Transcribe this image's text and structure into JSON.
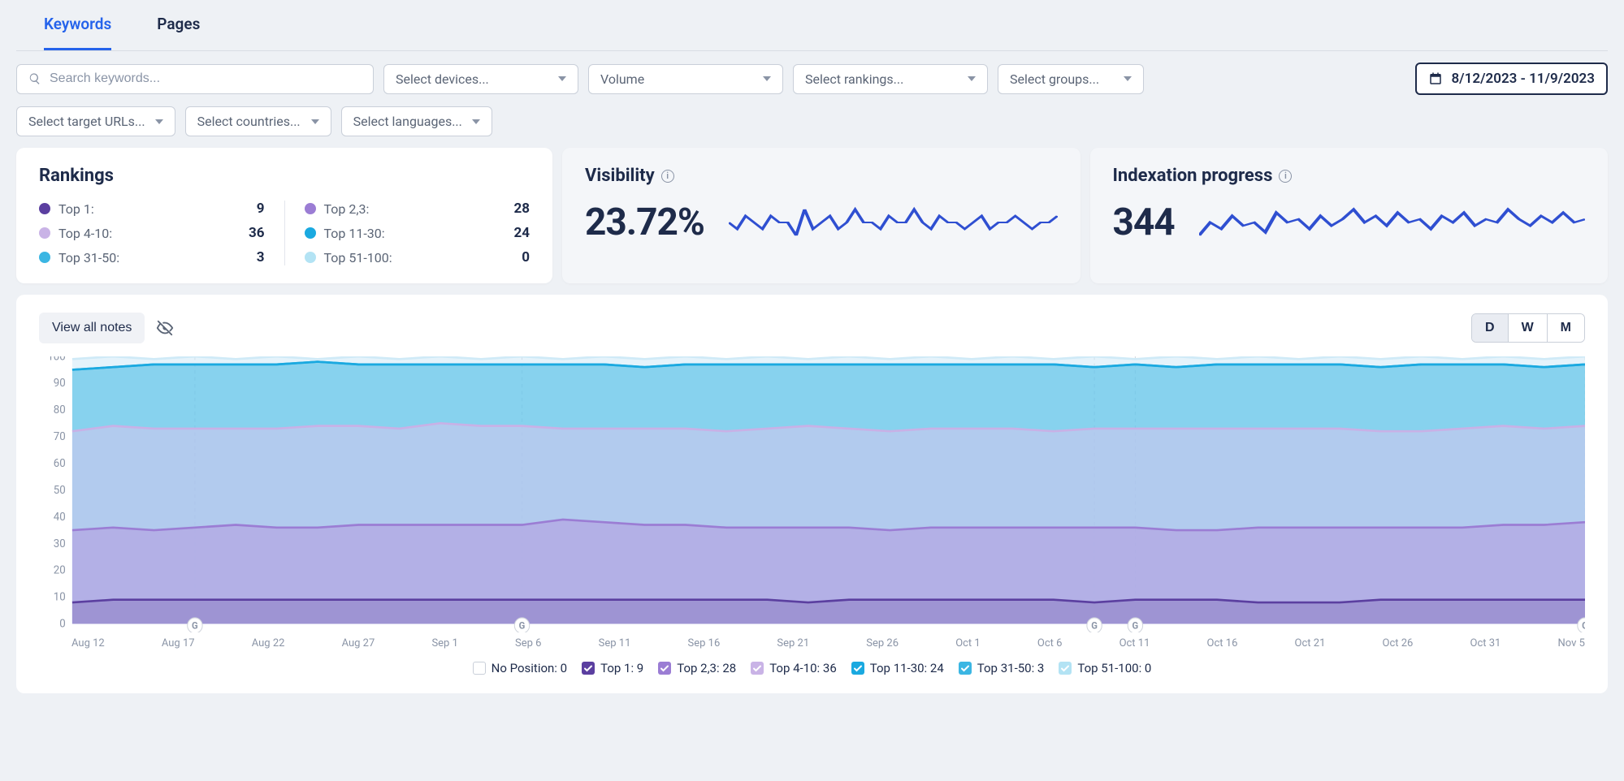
{
  "tabs": {
    "keywords": "Keywords",
    "pages": "Pages",
    "active": "keywords"
  },
  "filters": {
    "search_placeholder": "Search keywords...",
    "devices": "Select devices...",
    "volume": "Volume",
    "rankings": "Select rankings...",
    "groups": "Select groups...",
    "target_urls": "Select target URLs...",
    "countries": "Select countries...",
    "languages": "Select languages...",
    "date_range": "8/12/2023 - 11/9/2023"
  },
  "rankings": {
    "title": "Rankings",
    "left": [
      {
        "label": "Top 1:",
        "value": "9",
        "color": "#5b3fa0"
      },
      {
        "label": "Top 4-10:",
        "value": "36",
        "color": "#c9b3e6"
      },
      {
        "label": "Top 31-50:",
        "value": "3",
        "color": "#3bb6e3"
      }
    ],
    "right": [
      {
        "label": "Top 2,3:",
        "value": "28",
        "color": "#9b7dd4"
      },
      {
        "label": "Top 11-30:",
        "value": "24",
        "color": "#1aa9e0"
      },
      {
        "label": "Top 51-100:",
        "value": "0",
        "color": "#b3e3f4"
      }
    ]
  },
  "visibility": {
    "title": "Visibility",
    "value": "23.72%",
    "spark_color": "#2f4fd1",
    "spark": [
      24,
      23,
      25,
      24,
      23,
      25,
      24,
      24,
      22,
      26,
      23,
      24,
      25,
      23,
      24,
      26,
      24,
      24,
      23,
      25,
      24,
      24,
      26,
      24,
      23,
      25,
      24,
      24,
      23,
      24,
      25,
      23,
      24,
      24,
      25,
      24,
      23,
      24,
      24,
      25
    ]
  },
  "indexation": {
    "title": "Indexation progress",
    "value": "344",
    "spark_color": "#2f4fd1",
    "spark": [
      340,
      344,
      342,
      346,
      343,
      344,
      341,
      347,
      344,
      345,
      342,
      346,
      343,
      345,
      348,
      344,
      346,
      343,
      347,
      344,
      345,
      342,
      346,
      344,
      347,
      343,
      345,
      344,
      348,
      345,
      343,
      346,
      344,
      347,
      344,
      345
    ]
  },
  "chart": {
    "view_notes": "View all notes",
    "toggles": {
      "d": "D",
      "w": "W",
      "m": "M",
      "active": "d"
    },
    "ylim": [
      0,
      100
    ],
    "ytick_step": 10,
    "y_axis_color": "#8a94a6",
    "y_axis_fontsize": 13,
    "grid_dash_color": "#d0d4dc",
    "x_labels": [
      "Aug 12",
      "Aug 17",
      "Aug 22",
      "Aug 27",
      "Sep 1",
      "Sep 6",
      "Sep 11",
      "Sep 16",
      "Sep 21",
      "Sep 26",
      "Oct 1",
      "Oct 6",
      "Oct 11",
      "Oct 16",
      "Oct 21",
      "Oct 26",
      "Oct 31",
      "Nov 5"
    ],
    "series": [
      {
        "name": "Top 51-100",
        "color": "#cfeaf7",
        "stroke": "#cfeaf7",
        "area": true,
        "data": [
          99,
          100,
          99,
          100,
          99,
          100,
          99,
          100,
          99,
          100,
          99,
          100,
          99,
          100,
          99,
          100,
          99,
          100,
          99,
          100,
          99,
          100,
          99,
          100,
          99,
          100,
          99,
          100,
          99,
          100,
          99,
          100,
          99,
          100,
          99,
          100,
          99,
          100
        ]
      },
      {
        "name": "Top 31-50",
        "color": "#3bb6e3",
        "stroke": "#28aee0",
        "area": true,
        "data": [
          95,
          96,
          97,
          97,
          97,
          97,
          98,
          97,
          97,
          97,
          97,
          97,
          97,
          97,
          96,
          97,
          97,
          97,
          97,
          97,
          97,
          97,
          97,
          97,
          97,
          96,
          97,
          96,
          97,
          97,
          97,
          97,
          96,
          97,
          97,
          97,
          96,
          97
        ]
      },
      {
        "name": "Top 11-30",
        "color": "#1aa9e0",
        "stroke": "#1aa9e0",
        "area": false,
        "data": [
          95,
          96,
          97,
          97,
          97,
          97,
          98,
          97,
          97,
          97,
          97,
          97,
          97,
          97,
          96,
          97,
          97,
          97,
          97,
          97,
          97,
          97,
          97,
          97,
          97,
          96,
          97,
          96,
          97,
          97,
          97,
          97,
          96,
          97,
          97,
          97,
          96,
          97
        ]
      },
      {
        "name": "Top 4-10",
        "color": "#d6c4ee",
        "stroke": "#c8b1e6",
        "area": true,
        "data": [
          72,
          74,
          73,
          73,
          73,
          73,
          74,
          74,
          73,
          75,
          74,
          74,
          73,
          73,
          73,
          73,
          72,
          73,
          74,
          73,
          72,
          73,
          73,
          73,
          72,
          73,
          73,
          73,
          73,
          73,
          73,
          73,
          72,
          72,
          73,
          74,
          73,
          74
        ]
      },
      {
        "name": "Top 2,3",
        "color": "#b49be0",
        "stroke": "#9b7dd4",
        "area": true,
        "data": [
          35,
          36,
          35,
          36,
          37,
          36,
          36,
          37,
          37,
          37,
          37,
          37,
          39,
          38,
          37,
          37,
          36,
          36,
          36,
          36,
          35,
          36,
          36,
          36,
          36,
          36,
          36,
          35,
          35,
          36,
          36,
          36,
          36,
          36,
          36,
          37,
          37,
          38
        ]
      },
      {
        "name": "Top 1",
        "color": "#8c7dc2",
        "stroke": "#5b3fa0",
        "area": true,
        "data": [
          8,
          9,
          9,
          9,
          9,
          9,
          9,
          9,
          9,
          9,
          9,
          9,
          9,
          9,
          9,
          9,
          9,
          9,
          8,
          9,
          9,
          9,
          9,
          9,
          9,
          8,
          9,
          9,
          9,
          8,
          8,
          8,
          9,
          9,
          9,
          9,
          9,
          9
        ]
      }
    ],
    "markers": [
      3,
      11,
      25,
      26,
      37,
      39
    ],
    "legend": [
      {
        "label": "No Position: 0",
        "color": "#ffffff",
        "checked": false,
        "border": "#c9cfd9"
      },
      {
        "label": "Top 1: 9",
        "color": "#5b3fa0",
        "checked": true
      },
      {
        "label": "Top 2,3: 28",
        "color": "#9b7dd4",
        "checked": true
      },
      {
        "label": "Top 4-10: 36",
        "color": "#c9b3e6",
        "checked": true
      },
      {
        "label": "Top 11-30: 24",
        "color": "#1aa9e0",
        "checked": true
      },
      {
        "label": "Top 31-50: 3",
        "color": "#3bb6e3",
        "checked": true
      },
      {
        "label": "Top 51-100: 0",
        "color": "#b3e3f4",
        "checked": true
      }
    ]
  }
}
